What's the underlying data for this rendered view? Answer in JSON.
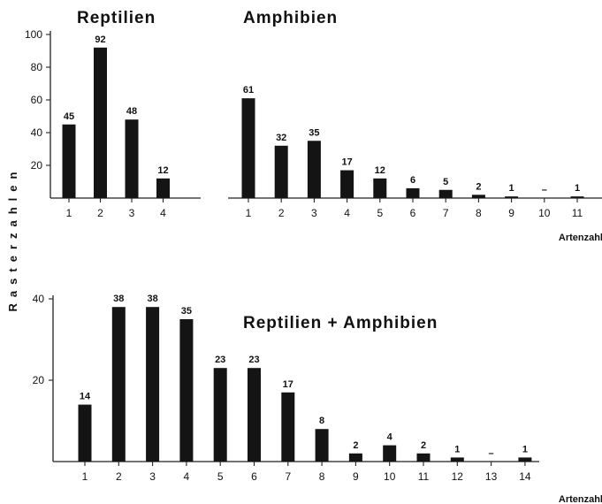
{
  "ylabel": "Rasterzahlen",
  "chart_data": [
    {
      "type": "bar",
      "title": "Reptilien",
      "xlabel": "",
      "ylabel": "Rasterzahlen",
      "categories": [
        "1",
        "2",
        "3",
        "4"
      ],
      "values": [
        45,
        92,
        48,
        12
      ],
      "value_labels": [
        "45",
        "92",
        "48",
        "12"
      ],
      "yticks": [
        20,
        40,
        60,
        80,
        100
      ],
      "ylim": [
        0,
        100
      ],
      "grid": false
    },
    {
      "type": "bar",
      "title": "Amphibien",
      "xlabel": "Artenzahl",
      "ylabel": "Rasterzahlen",
      "categories": [
        "1",
        "2",
        "3",
        "4",
        "5",
        "6",
        "7",
        "8",
        "9",
        "10",
        "11"
      ],
      "values": [
        61,
        32,
        35,
        17,
        12,
        6,
        5,
        2,
        1,
        0,
        1
      ],
      "value_labels": [
        "61",
        "32",
        "35",
        "17",
        "12",
        "6",
        "5",
        "2",
        "1",
        "–",
        "1"
      ],
      "ylim": [
        0,
        100
      ],
      "grid": false
    },
    {
      "type": "bar",
      "title": "Reptilien + Amphibien",
      "xlabel": "Artenzahl",
      "ylabel": "Rasterzahlen",
      "categories": [
        "1",
        "2",
        "3",
        "4",
        "5",
        "6",
        "7",
        "8",
        "9",
        "10",
        "11",
        "12",
        "13",
        "14"
      ],
      "values": [
        14,
        38,
        38,
        35,
        23,
        23,
        17,
        8,
        2,
        4,
        2,
        1,
        0,
        1
      ],
      "value_labels": [
        "14",
        "38",
        "38",
        "35",
        "23",
        "23",
        "17",
        "8",
        "2",
        "4",
        "2",
        "1",
        "–",
        "1"
      ],
      "yticks": [
        20,
        40
      ],
      "ylim": [
        0,
        44
      ],
      "grid": false
    }
  ]
}
